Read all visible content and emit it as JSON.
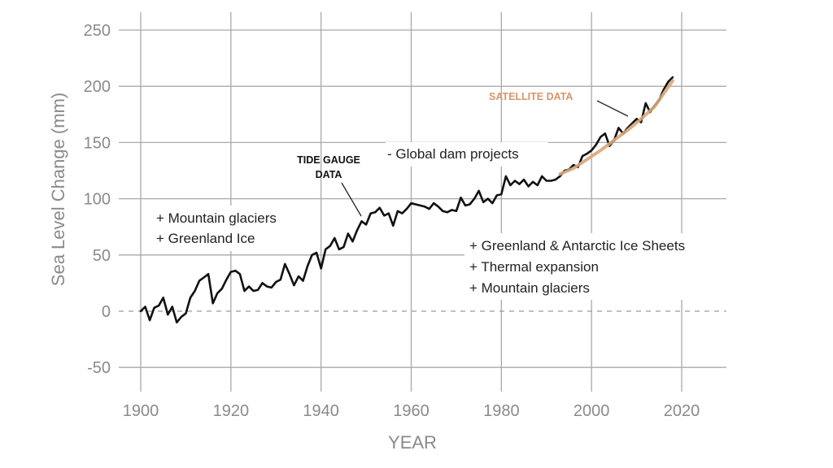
{
  "chart_data": {
    "type": "line",
    "xlabel": "YEAR",
    "ylabel": "Sea Level Change (mm)",
    "xlim": [
      1900,
      2030
    ],
    "ylim": [
      -65,
      260
    ],
    "x_ticks": [
      1900,
      1920,
      1940,
      1960,
      1980,
      2000,
      2020
    ],
    "y_ticks": [
      -50,
      0,
      50,
      100,
      150,
      200,
      250
    ],
    "grid": true,
    "zero_line": "dashed",
    "series": [
      {
        "name": "TIDE GAUGE DATA",
        "color": "#111111",
        "x": [
          1900,
          1901,
          1902,
          1903,
          1904,
          1905,
          1906,
          1907,
          1908,
          1909,
          1910,
          1911,
          1912,
          1913,
          1914,
          1915,
          1916,
          1917,
          1918,
          1919,
          1920,
          1921,
          1922,
          1923,
          1924,
          1925,
          1926,
          1927,
          1928,
          1929,
          1930,
          1931,
          1932,
          1933,
          1934,
          1935,
          1936,
          1937,
          1938,
          1939,
          1940,
          1941,
          1942,
          1943,
          1944,
          1945,
          1946,
          1947,
          1948,
          1949,
          1950,
          1951,
          1952,
          1953,
          1954,
          1955,
          1956,
          1957,
          1958,
          1959,
          1960,
          1961,
          1962,
          1963,
          1964,
          1965,
          1966,
          1967,
          1968,
          1969,
          1970,
          1971,
          1972,
          1973,
          1974,
          1975,
          1976,
          1977,
          1978,
          1979,
          1980,
          1981,
          1982,
          1983,
          1984,
          1985,
          1986,
          1987,
          1988,
          1989,
          1990,
          1991,
          1992,
          1993,
          1994,
          1995,
          1996,
          1997,
          1998,
          1999,
          2000,
          2001,
          2002,
          2003,
          2004,
          2005,
          2006,
          2007,
          2008,
          2009,
          2010,
          2011,
          2012,
          2013,
          2014,
          2015,
          2016,
          2017,
          2018
        ],
        "values": [
          0,
          4,
          -8,
          3,
          5,
          12,
          -3,
          4,
          -10,
          -5,
          -2,
          12,
          18,
          27,
          30,
          33,
          7,
          16,
          20,
          28,
          35,
          36,
          33,
          18,
          22,
          18,
          19,
          25,
          22,
          21,
          26,
          28,
          42,
          33,
          23,
          31,
          27,
          40,
          50,
          52,
          38,
          55,
          58,
          65,
          55,
          57,
          69,
          62,
          72,
          80,
          77,
          87,
          88,
          92,
          85,
          87,
          76,
          89,
          87,
          91,
          96,
          95,
          94,
          93,
          91,
          96,
          93,
          89,
          88,
          90,
          89,
          101,
          94,
          95,
          100,
          107,
          97,
          100,
          96,
          103,
          104,
          120,
          112,
          116,
          113,
          117,
          111,
          115,
          112,
          120,
          116,
          116,
          117,
          120,
          125,
          126,
          130,
          128,
          138,
          140,
          143,
          148,
          155,
          158,
          147,
          152,
          163,
          158,
          163,
          167,
          171,
          168,
          185,
          177,
          183,
          188,
          197,
          204,
          208
        ]
      },
      {
        "name": "SATELLITE DATA",
        "color": "#d8a67a",
        "x": [
          1993,
          1996,
          1999,
          2002,
          2005,
          2008,
          2011,
          2014,
          2018
        ],
        "values": [
          122,
          127,
          135,
          143,
          152,
          161,
          171,
          182,
          205
        ]
      }
    ],
    "annotations": {
      "tide_gauge_line1": "TIDE GAUGE",
      "tide_gauge_line2": "DATA",
      "satellite": "SATELLITE DATA",
      "dams": "- Global dam projects",
      "early_1": "+ Mountain glaciers",
      "early_2": "+ Greenland Ice",
      "late_1": "+ Greenland & Antarctic Ice Sheets",
      "late_2": "+ Thermal expansion",
      "late_3": "+ Mountain glaciers"
    },
    "colors": {
      "satellite_label": "#d8956a"
    }
  }
}
